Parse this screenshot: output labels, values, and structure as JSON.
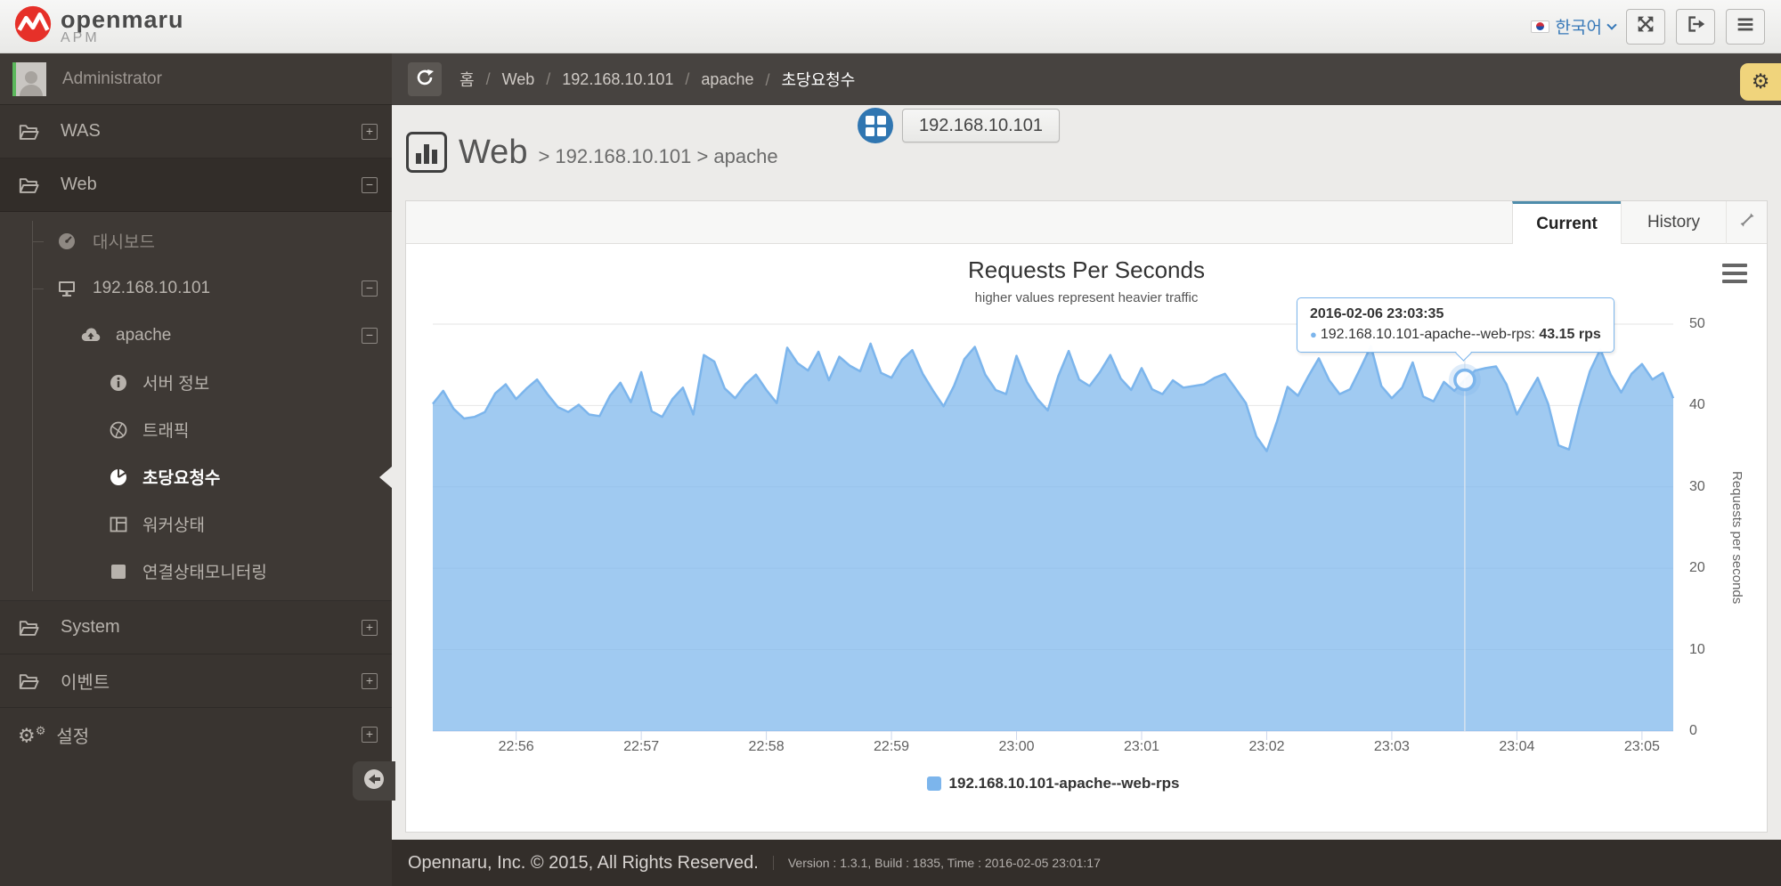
{
  "header": {
    "brand": "openmaru",
    "brand_sub": "APM",
    "language": "한국어"
  },
  "sidebar": {
    "user": "Administrator",
    "items": [
      {
        "label": "WAS",
        "toggle": "+"
      },
      {
        "label": "Web",
        "toggle": "−"
      },
      {
        "label": "대시보드"
      },
      {
        "label": "192.168.10.101",
        "toggle": "−"
      },
      {
        "label": "apache",
        "toggle": "−"
      },
      {
        "label": "서버 정보"
      },
      {
        "label": "트래픽"
      },
      {
        "label": "초당요청수"
      },
      {
        "label": "워커상태"
      },
      {
        "label": "연결상태모니터링"
      },
      {
        "label": "System",
        "toggle": "+"
      },
      {
        "label": "이벤트",
        "toggle": "+"
      },
      {
        "label": "설정",
        "toggle": "+"
      }
    ]
  },
  "breadcrumb": {
    "items": [
      "홈",
      "Web",
      "192.168.10.101",
      "apache",
      "초당요청수"
    ]
  },
  "page_title": {
    "section": "Web",
    "path": "> 192.168.10.101 > apache",
    "tag": "192.168.10.101"
  },
  "tabs": {
    "current": "Current",
    "history": "History"
  },
  "colors": {
    "accent": "#7cb5ec",
    "tab_accent": "#4e8cab",
    "gear_button": "#f0d47c",
    "logo_red": "#e63029"
  },
  "chart_data": {
    "type": "area",
    "title": "Requests Per Seconds",
    "subtitle": "higher values represent heavier traffic",
    "series_name": "192.168.10.101-apache--web-rps",
    "ylabel": "Requests per seconds",
    "ylim": [
      0,
      50
    ],
    "yticks": [
      0,
      10,
      20,
      30,
      40,
      50
    ],
    "x_start": "22:55:20",
    "interval_s": 5,
    "xticks": [
      "22:56",
      "22:57",
      "22:58",
      "22:59",
      "23:00",
      "23:01",
      "23:02",
      "23:03",
      "23:04",
      "23:05"
    ],
    "xtick_offsets_s": [
      40,
      100,
      160,
      220,
      280,
      340,
      400,
      460,
      520,
      580
    ],
    "values": [
      40.2,
      41.8,
      39.6,
      38.4,
      38.6,
      39.2,
      41.5,
      42.6,
      40.8,
      42.1,
      43.2,
      41.4,
      39.8,
      39.2,
      40.1,
      38.9,
      38.7,
      41.2,
      42.8,
      40.4,
      44.1,
      39.3,
      38.6,
      40.8,
      42.2,
      38.9,
      46.2,
      45.4,
      42.1,
      40.9,
      42.6,
      43.8,
      41.9,
      40.3,
      47.1,
      45.2,
      44.3,
      46.6,
      43.1,
      46.0,
      44.9,
      44.2,
      47.6,
      44.0,
      43.4,
      45.6,
      46.8,
      43.9,
      41.8,
      39.9,
      42.4,
      45.7,
      47.2,
      43.8,
      41.9,
      41.4,
      46.1,
      42.9,
      40.8,
      39.4,
      43.6,
      46.7,
      43.2,
      42.4,
      44.1,
      46.2,
      43.3,
      41.9,
      44.6,
      42.0,
      41.4,
      43.1,
      42.2,
      42.4,
      42.6,
      43.4,
      43.9,
      42.1,
      40.3,
      36.2,
      34.4,
      38.1,
      42.3,
      41.2,
      43.6,
      45.8,
      43.1,
      41.4,
      42.0,
      44.6,
      47.3,
      42.4,
      40.9,
      42.2,
      45.3,
      41.1,
      40.5,
      42.9,
      41.8,
      43.15,
      44.3,
      44.6,
      44.8,
      42.6,
      38.9,
      41.2,
      43.4,
      40.2,
      35.1,
      34.6,
      39.8,
      44.2,
      46.9,
      43.8,
      41.6,
      43.9,
      45.1,
      43.2,
      44.0,
      40.9
    ],
    "hover": {
      "index": 99,
      "time": "2016-02-06 23:03:35",
      "series": "192.168.10.101-apache--web-rps:",
      "value": "43.15 rps"
    }
  },
  "footer": {
    "copyright": "Opennaru, Inc. © 2015, All Rights Reserved.",
    "version": "Version : 1.3.1, Build : 1835, Time : 2016-02-05 23:01:17"
  }
}
